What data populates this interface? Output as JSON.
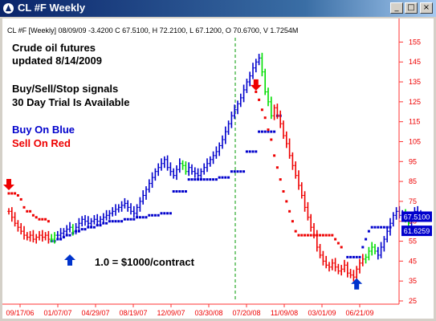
{
  "window": {
    "title": "CL #F Weekly",
    "minimize_glyph": "_",
    "maximize_glyph": "□",
    "close_glyph": "×"
  },
  "chart_data": {
    "type": "bar",
    "header": "CL #F [Weekly] 08/09/09 -3.4200 C 67.5100, H 72.2100, L 67.1200, O 70.6700, V 1.7254M",
    "ylim": [
      25,
      160
    ],
    "y_ticks": [
      25,
      35,
      45,
      55,
      65,
      75,
      85,
      95,
      105,
      115,
      125,
      135,
      145,
      155
    ],
    "x_tick_labels": [
      "09/17/06",
      "01/07/07",
      "04/29/07",
      "08/19/07",
      "12/09/07",
      "03/30/08",
      "07/20/08",
      "11/09/08",
      "03/01/09",
      "06/21/09"
    ],
    "vlines_at": [
      6,
      49,
      107
    ],
    "price_tags": [
      {
        "value": 67.51,
        "label": "67.5100",
        "color": "#0000cc"
      },
      {
        "value": 61.6259,
        "label": "61.6259",
        "color": "#0000cc"
      }
    ],
    "annotations": [
      {
        "text": "Crude oil futures",
        "color": "#000000"
      },
      {
        "text": "updated 8/14/2009",
        "color": "#000000"
      },
      {
        "text": "Buy/Sell/Stop signals",
        "color": "#000000"
      },
      {
        "text": "30 Day Trial Is Available",
        "color": "#000000"
      },
      {
        "text": "Buy On Blue",
        "color": "#0000cc"
      },
      {
        "text": "Sell On Red",
        "color": "#ee0000"
      },
      {
        "text": "1.0 = $1000/contract",
        "color": "#000000"
      }
    ],
    "arrows": [
      {
        "type": "sell",
        "index": 0,
        "value": 79
      },
      {
        "type": "buy",
        "index": 20,
        "value": 50
      },
      {
        "type": "sell",
        "index": 81,
        "value": 129
      },
      {
        "type": "buy",
        "index": 114,
        "value": 38
      }
    ],
    "colors": {
      "buy": "#0000cc",
      "sell": "#ee0000",
      "neutral": "#00dd00"
    },
    "segments": [
      {
        "color": "sell",
        "prices": [
          70,
          67,
          64,
          62,
          60,
          58,
          57,
          58,
          56,
          57,
          58,
          57,
          58,
          56
        ]
      },
      {
        "color": "neutral",
        "prices": [
          56,
          58
        ]
      },
      {
        "color": "buy",
        "prices": [
          58,
          59,
          60,
          61,
          62
        ]
      },
      {
        "color": "neutral",
        "prices": [
          60
        ]
      },
      {
        "color": "buy",
        "prices": [
          62,
          64,
          66,
          65,
          64,
          65,
          66,
          65,
          66,
          67,
          68,
          69,
          70,
          71,
          72,
          73,
          74,
          72,
          70,
          69,
          72,
          75,
          78,
          81,
          84,
          87,
          90,
          92,
          94,
          96,
          92,
          90,
          88,
          91,
          94
        ]
      },
      {
        "color": "neutral",
        "prices": [
          93,
          90
        ]
      },
      {
        "color": "buy",
        "prices": [
          92,
          90,
          89,
          88,
          90,
          92,
          94,
          96,
          98,
          100,
          103,
          106,
          110,
          114,
          118,
          121,
          124,
          127,
          131,
          135,
          138,
          142,
          145,
          147
        ]
      },
      {
        "color": "neutral",
        "prices": [
          140,
          130,
          125,
          118
        ]
      },
      {
        "color": "sell",
        "prices": [
          122,
          118,
          114,
          108,
          104,
          98,
          93,
          88,
          83,
          78,
          72,
          67,
          62,
          58,
          52,
          48,
          45,
          43,
          42,
          44,
          42,
          40,
          41,
          43,
          39,
          38,
          37,
          41,
          44,
          46
        ]
      },
      {
        "color": "neutral",
        "prices": [
          47,
          50,
          52,
          50
        ]
      },
      {
        "color": "buy",
        "prices": [
          48,
          52,
          56,
          60,
          64,
          68,
          70,
          68,
          69
        ]
      },
      {
        "color": "neutral",
        "prices": [
          66,
          64
        ]
      },
      {
        "color": "buy",
        "prices": [
          68,
          70,
          69,
          68
        ]
      }
    ],
    "stop_segments": [
      {
        "color": "sell",
        "start": 0,
        "values": [
          79,
          79,
          79,
          78,
          76,
          72,
          70,
          70,
          68,
          67,
          66,
          66,
          66,
          65
        ]
      },
      {
        "color": "buy",
        "start": 14,
        "values": [
          55,
          55,
          56,
          56,
          57,
          58,
          58,
          59,
          60,
          60,
          61,
          61,
          62,
          62,
          62,
          63,
          63,
          64,
          64,
          65,
          65,
          65,
          65,
          65,
          66,
          66,
          66,
          66,
          67,
          67,
          67,
          67,
          68,
          68,
          68,
          68,
          69,
          69,
          69,
          69,
          80,
          80,
          80,
          80,
          80,
          86,
          86,
          86,
          86,
          86,
          86,
          86,
          86,
          86,
          86,
          87,
          87,
          87,
          87,
          90,
          90,
          90,
          90,
          90,
          100,
          100,
          100,
          100,
          110,
          110,
          110,
          110,
          110,
          110,
          118,
          118
        ]
      },
      {
        "color": "sell",
        "start": 81,
        "values": [
          130,
          126,
          121,
          117,
          111,
          106,
          98,
          92,
          86,
          80,
          75,
          70,
          65,
          60,
          58,
          58,
          58,
          58,
          58,
          58,
          58,
          58,
          58,
          58,
          58,
          58,
          56,
          54,
          52
        ]
      },
      {
        "color": "buy",
        "start": 111,
        "values": [
          47,
          47,
          47,
          47,
          47,
          52,
          56,
          60,
          62,
          62,
          62,
          62,
          62,
          62,
          62
        ]
      }
    ]
  }
}
